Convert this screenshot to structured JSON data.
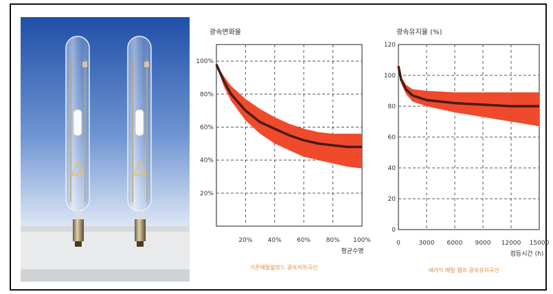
{
  "chart_data": [
    {
      "type": "area",
      "title": "광속변화율",
      "xlabel": "평균수명",
      "ylabel": "",
      "caption": "기존메탈할로드 광속저하곡선",
      "x_tick_labels": [
        "20%",
        "40%",
        "60%",
        "80%",
        "100%"
      ],
      "y_tick_labels": [
        "20%",
        "40%",
        "60%",
        "80%",
        "100%"
      ],
      "xlim": [
        0,
        100
      ],
      "ylim": [
        0,
        110
      ],
      "grid": true,
      "series": [
        {
          "x": [
            0,
            5,
            10,
            20,
            30,
            40,
            50,
            60,
            70,
            80,
            90,
            100
          ],
          "y": [
            98,
            88,
            80,
            70,
            63,
            59,
            55,
            52,
            50,
            49,
            48,
            48
          ],
          "upper": [
            98,
            91,
            85,
            77,
            71,
            66,
            62,
            59,
            57,
            56,
            56,
            56
          ],
          "lower": [
            98,
            85,
            76,
            64,
            56,
            50,
            46,
            42,
            40,
            38,
            36,
            35
          ]
        }
      ],
      "colors": {
        "band": "#ef4a2c",
        "line": "#4a1a10"
      }
    },
    {
      "type": "area",
      "title": "광속유지율 (%)",
      "xlabel": "점등시간 (h)",
      "ylabel": "",
      "caption": "세라믹 메탈 램프 광속유지곡선",
      "x_tick_labels": [
        "0",
        "3000",
        "6000",
        "9000",
        "12000",
        "15000"
      ],
      "y_tick_labels": [
        "0",
        "20",
        "40",
        "60",
        "80",
        "100",
        "120"
      ],
      "xlim": [
        0,
        15000
      ],
      "ylim": [
        0,
        120
      ],
      "grid": true,
      "series": [
        {
          "x": [
            0,
            300,
            800,
            1500,
            3000,
            6000,
            9000,
            12000,
            15000
          ],
          "y": [
            106,
            97,
            91,
            87,
            84,
            82,
            81,
            80,
            80
          ],
          "upper": [
            108,
            99,
            94,
            91,
            90,
            89,
            89,
            89,
            89
          ],
          "lower": [
            104,
            95,
            88,
            83,
            80,
            76,
            73,
            70,
            67
          ]
        }
      ],
      "colors": {
        "band": "#ef4a2c",
        "line": "#4a1a10"
      }
    }
  ]
}
